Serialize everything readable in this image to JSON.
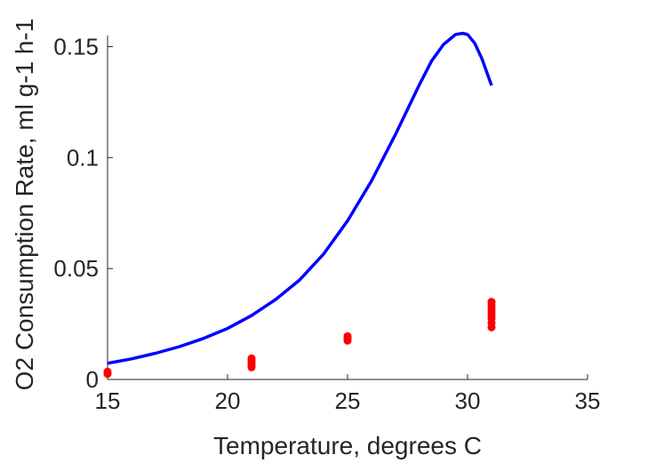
{
  "chart_data": {
    "type": "line",
    "title": "",
    "xlabel": "Temperature, degrees C",
    "ylabel": "O2 Consumption Rate, ml g-1 h-1",
    "xlim": [
      15,
      35
    ],
    "ylim": [
      0,
      0.155
    ],
    "xticks": [
      15,
      20,
      25,
      30,
      35
    ],
    "xtick_labels": [
      "15",
      "20",
      "25",
      "30",
      "35"
    ],
    "yticks": [
      0,
      0.05,
      0.1,
      0.15
    ],
    "ytick_labels": [
      "0",
      "0.05",
      "0.1",
      "0.15"
    ],
    "grid": false,
    "legend": "none",
    "series": [
      {
        "type": "line",
        "color": "#0000ff",
        "x": [
          15,
          16,
          17,
          18,
          19,
          20,
          21,
          22,
          23,
          24,
          25,
          26,
          27,
          28,
          28.5,
          29,
          29.5,
          29.8,
          30,
          30.3,
          30.6,
          31
        ],
        "y": [
          0.0073,
          0.0093,
          0.0118,
          0.0148,
          0.0185,
          0.023,
          0.0288,
          0.036,
          0.0448,
          0.0565,
          0.0715,
          0.0895,
          0.1105,
          0.133,
          0.1435,
          0.151,
          0.1555,
          0.156,
          0.1555,
          0.1515,
          0.1445,
          0.1325
        ]
      },
      {
        "type": "scatter",
        "color": "#ff0000",
        "x": [
          15,
          15,
          21,
          21,
          21,
          21,
          21,
          25,
          25,
          25,
          31,
          31,
          31,
          31,
          31,
          31,
          31,
          31
        ],
        "y": [
          0.0025,
          0.0035,
          0.0055,
          0.0065,
          0.0075,
          0.0085,
          0.0095,
          0.0175,
          0.0185,
          0.0195,
          0.0235,
          0.0255,
          0.0275,
          0.029,
          0.0305,
          0.032,
          0.0335,
          0.035
        ]
      }
    ]
  }
}
